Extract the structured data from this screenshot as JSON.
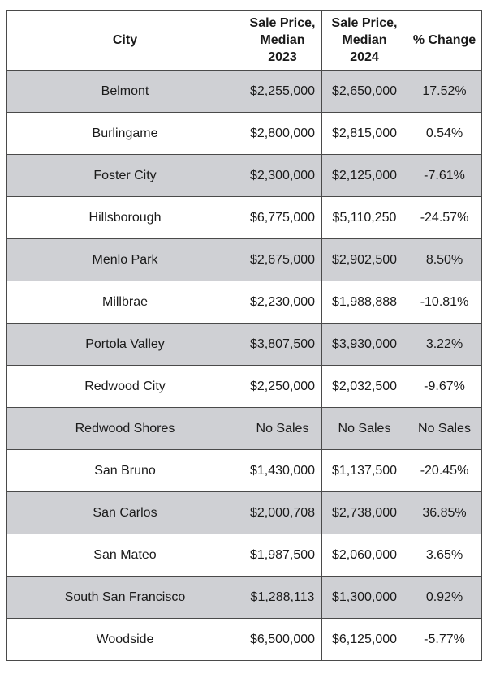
{
  "table": {
    "headers": {
      "city": "City",
      "price_2023": [
        "Sale Price,",
        "Median",
        "2023"
      ],
      "price_2024": [
        "Sale Price,",
        "Median",
        "2024"
      ],
      "change": "% Change"
    },
    "rows": [
      {
        "city": "Belmont",
        "price_2023": "$2,255,000",
        "price_2024": "$2,650,000",
        "change": "17.52%"
      },
      {
        "city": "Burlingame",
        "price_2023": "$2,800,000",
        "price_2024": "$2,815,000",
        "change": "0.54%"
      },
      {
        "city": "Foster City",
        "price_2023": "$2,300,000",
        "price_2024": "$2,125,000",
        "change": "-7.61%"
      },
      {
        "city": "Hillsborough",
        "price_2023": "$6,775,000",
        "price_2024": "$5,110,250",
        "change": "-24.57%"
      },
      {
        "city": "Menlo Park",
        "price_2023": "$2,675,000",
        "price_2024": "$2,902,500",
        "change": "8.50%"
      },
      {
        "city": "Millbrae",
        "price_2023": "$2,230,000",
        "price_2024": "$1,988,888",
        "change": "-10.81%"
      },
      {
        "city": "Portola Valley",
        "price_2023": "$3,807,500",
        "price_2024": "$3,930,000",
        "change": "3.22%"
      },
      {
        "city": "Redwood City",
        "price_2023": "$2,250,000",
        "price_2024": "$2,032,500",
        "change": "-9.67%"
      },
      {
        "city": "Redwood Shores",
        "price_2023": "No Sales",
        "price_2024": "No Sales",
        "change": "No Sales"
      },
      {
        "city": "San Bruno",
        "price_2023": "$1,430,000",
        "price_2024": "$1,137,500",
        "change": "-20.45%"
      },
      {
        "city": "San Carlos",
        "price_2023": "$2,000,708",
        "price_2024": "$2,738,000",
        "change": "36.85%"
      },
      {
        "city": "San Mateo",
        "price_2023": "$1,987,500",
        "price_2024": "$2,060,000",
        "change": "3.65%"
      },
      {
        "city": "South San Francisco",
        "price_2023": "$1,288,113",
        "price_2024": "$1,300,000",
        "change": "0.92%"
      },
      {
        "city": "Woodside",
        "price_2023": "$6,500,000",
        "price_2024": "$6,125,000",
        "change": "-5.77%"
      }
    ],
    "colors": {
      "shaded_row": "#cfd0d4",
      "plain_row": "#ffffff",
      "border": "#4a4a4a"
    }
  }
}
